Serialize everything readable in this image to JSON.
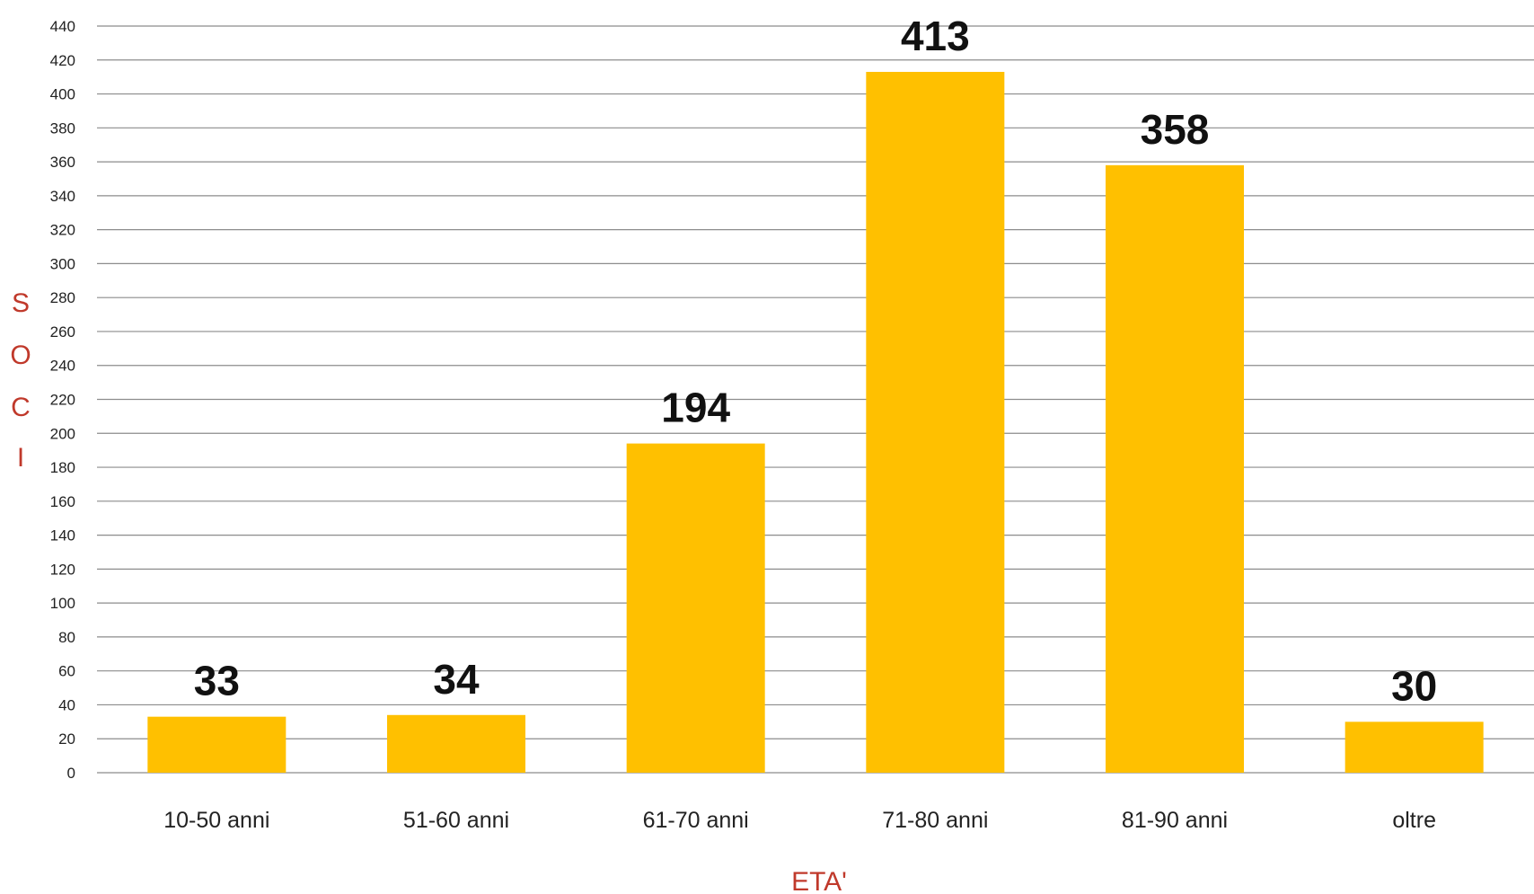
{
  "chart_data": {
    "type": "bar",
    "categories": [
      "10-50 anni",
      "51-60 anni",
      "61-70 anni",
      "71-80 anni",
      "81-90 anni",
      "oltre"
    ],
    "values": [
      33,
      34,
      194,
      413,
      358,
      30
    ],
    "data_labels": [
      "33",
      "34",
      "194",
      "413",
      "358",
      "30"
    ],
    "title": "",
    "xlabel": "ETA'",
    "ylabel_letters": [
      "S",
      "O",
      "C",
      "I"
    ],
    "ylim": [
      0,
      440
    ],
    "yticks": [
      0,
      20,
      40,
      60,
      80,
      100,
      120,
      140,
      160,
      180,
      200,
      220,
      240,
      260,
      280,
      300,
      320,
      340,
      360,
      380,
      400,
      420,
      440
    ],
    "grid": true,
    "legend": "none"
  },
  "colors": {
    "bar": "#FFC000",
    "axis_title": "#C0392B",
    "gridline": "#8C8C8C"
  }
}
